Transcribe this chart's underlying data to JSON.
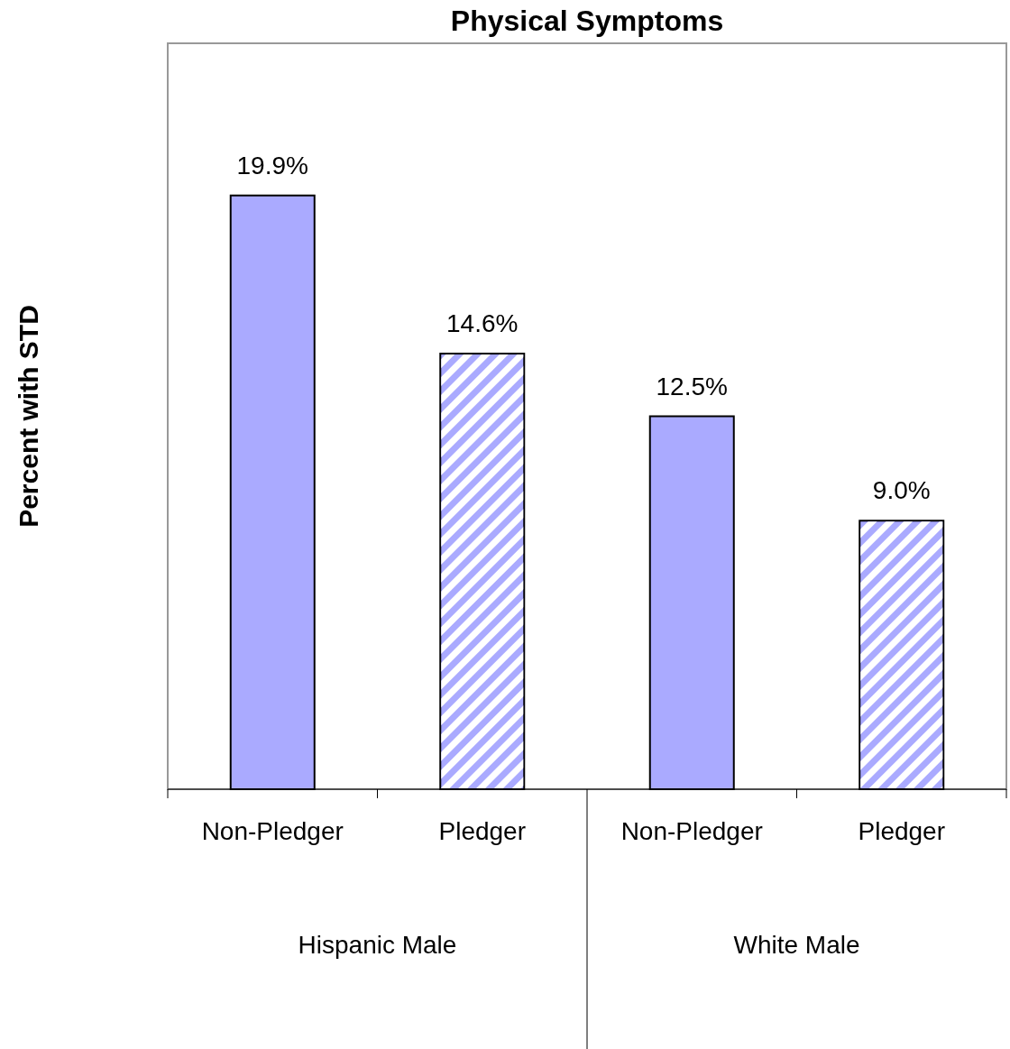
{
  "chart_data": {
    "type": "bar",
    "title": "Physical Symptoms",
    "ylabel": "Percent with STD",
    "categories": [
      "Hispanic Male",
      "White Male"
    ],
    "series": [
      {
        "name": "Non-Pledger",
        "color": "#aaaaff",
        "values": [
          19.9,
          12.5
        ],
        "value_labels": [
          "19.9%",
          "12.5%"
        ]
      },
      {
        "name": "Pledger",
        "color": "#aaaaff",
        "values": [
          14.6,
          9.0
        ],
        "value_labels": [
          "14.6%",
          "9.0%"
        ]
      }
    ],
    "ylim": [
      0,
      25
    ],
    "grid": false,
    "legend": false
  }
}
